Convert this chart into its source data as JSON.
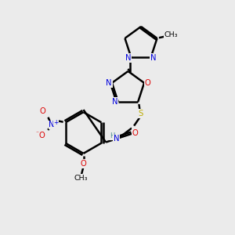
{
  "background_color": "#ebebeb",
  "atom_colors": {
    "N": "#0000dd",
    "O": "#dd0000",
    "S": "#bbaa00",
    "H": "#448888"
  },
  "figsize": [
    3.0,
    3.0
  ],
  "dpi": 100
}
